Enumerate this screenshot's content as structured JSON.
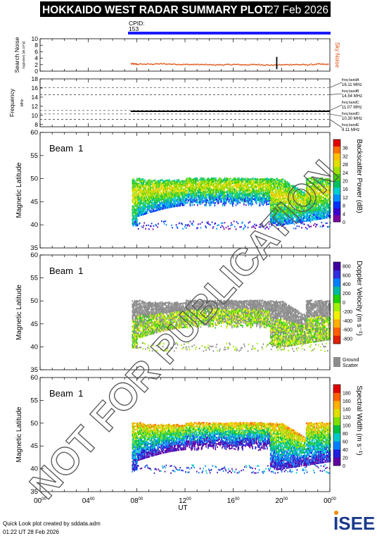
{
  "header": {
    "title": "HOKKAIDO WEST RADAR SUMMARY PLOT",
    "date": "27 Feb 2026",
    "cpid_label": "CPID:",
    "cpid_value": "153"
  },
  "watermark": "NOT FOR PUBLICATION",
  "footer": {
    "credit": "Quick Look plot created by sddata.adm",
    "timestamp": "01:22 UT 28 Feb 2026",
    "logo_text": "ISEE"
  },
  "colors": {
    "cpid_bar": "#1a1aff",
    "noise": "#e05010",
    "ground_scatter": "#8c8c8c",
    "title_bg": "#000000"
  },
  "chart_data": [
    {
      "type": "scatter",
      "panel": "search-noise",
      "ylabel": "Search Noise",
      "ylabel_sub": "log(noise) [sk,10^p]",
      "yticks": [
        0,
        2,
        4,
        6,
        8,
        10
      ],
      "ylim": [
        0,
        10
      ],
      "legend": "Sky Noise",
      "series": [
        {
          "name": "Sky Noise",
          "x": [
            7.5,
            8,
            9,
            10,
            11,
            12,
            13,
            14,
            15,
            16,
            17,
            18,
            19,
            20,
            21,
            22,
            23,
            23.9
          ],
          "y": [
            2.4,
            2.3,
            2.3,
            2.4,
            2.3,
            2.2,
            2.2,
            2.1,
            2.1,
            2.2,
            2.1,
            2.2,
            2.0,
            2.1,
            2.2,
            2.1,
            2.3,
            2.2
          ]
        }
      ],
      "spikes": [
        {
          "x": 19.6,
          "y": 4.4
        }
      ]
    },
    {
      "type": "line",
      "panel": "frequency",
      "ylabel": "Frequency",
      "ylabel_sub": "MHz",
      "yticks": [
        8,
        10,
        12,
        14,
        16,
        18
      ],
      "ylim": [
        7.5,
        18
      ],
      "series": [
        {
          "name": "",
          "x": [
            7.5,
            24
          ],
          "y": [
            10.9,
            10.9
          ]
        }
      ],
      "freq_bands": [
        {
          "label": "freq bandA",
          "value": "16.11 MHz",
          "f": 16.11
        },
        {
          "label": "freq bandB",
          "value": "14.54 MHz",
          "f": 14.54
        },
        {
          "label": "freq bandC",
          "value": "11.07 MHz",
          "f": 11.07
        },
        {
          "label": "freq bandD",
          "value": "10.30 MHz",
          "f": 10.3
        },
        {
          "label": "freq bandE",
          "value": "9.11 MHz",
          "f": 9.11
        }
      ]
    },
    {
      "type": "heatmap",
      "panel": "power",
      "beam": "Beam  1",
      "ylabel": "Magnetic Latitude",
      "yticks": [
        35,
        40,
        45,
        50,
        55,
        60
      ],
      "ylim": [
        35,
        60
      ],
      "colorbar": {
        "label": "Backscatter Power (dB)",
        "ticks": [
          "0",
          "4",
          "8",
          "12",
          "16",
          "20",
          "24",
          "28",
          "32",
          "36"
        ],
        "range": [
          0,
          36
        ]
      }
    },
    {
      "type": "heatmap",
      "panel": "velocity",
      "beam": "Beam  1",
      "ylabel": "Magnetic Latitude",
      "yticks": [
        35,
        40,
        45,
        50,
        55,
        60
      ],
      "ylim": [
        35,
        60
      ],
      "colorbar": {
        "label": "Doppler Velocity (m s⁻¹)",
        "ticks": [
          "800",
          "600",
          "400",
          "200",
          "0",
          "-200",
          "-400",
          "-600",
          "-800"
        ],
        "range": [
          -800,
          800
        ]
      },
      "ground_scatter_label_1": "Ground",
      "ground_scatter_label_2": "Scatter"
    },
    {
      "type": "heatmap",
      "panel": "width",
      "beam": "Beam  1",
      "ylabel": "Magnetic Latitude",
      "yticks": [
        35,
        40,
        45,
        50,
        55,
        60
      ],
      "ylim": [
        35,
        60
      ],
      "colorbar": {
        "label": "Spectral Width (m s⁻¹)",
        "ticks": [
          "0",
          "20",
          "40",
          "60",
          "80",
          "100",
          "120",
          "140",
          "160",
          "180"
        ],
        "range": [
          0,
          180
        ]
      }
    }
  ],
  "xaxis": {
    "label": "UT",
    "ticks": [
      {
        "h": "00",
        "m": "00"
      },
      {
        "h": "04",
        "m": "00"
      },
      {
        "h": "08",
        "m": "00"
      },
      {
        "h": "12",
        "m": "00"
      },
      {
        "h": "16",
        "m": "00"
      },
      {
        "h": "20",
        "m": "00"
      },
      {
        "h": "00",
        "m": "00"
      }
    ],
    "range": [
      0,
      24
    ]
  }
}
